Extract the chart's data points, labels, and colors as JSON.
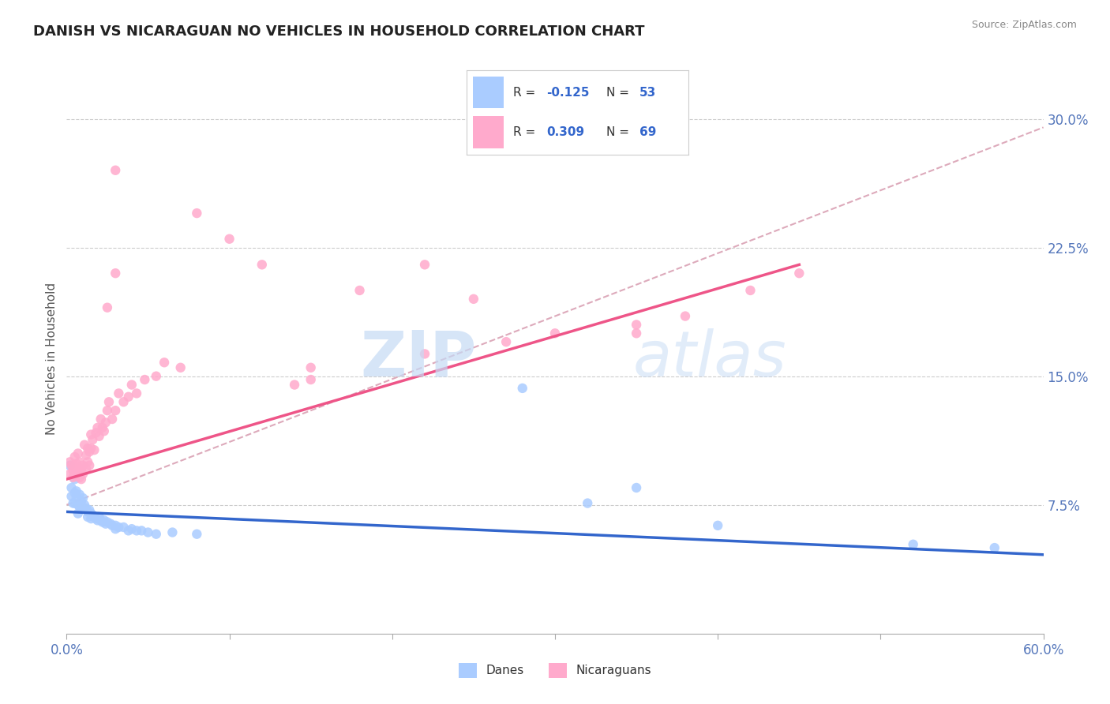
{
  "title": "DANISH VS NICARAGUAN NO VEHICLES IN HOUSEHOLD CORRELATION CHART",
  "source": "Source: ZipAtlas.com",
  "ylabel": "No Vehicles in Household",
  "ylabel_right_ticks": [
    "30.0%",
    "22.5%",
    "15.0%",
    "7.5%"
  ],
  "ylabel_right_values": [
    0.3,
    0.225,
    0.15,
    0.075
  ],
  "color_danes": "#aaccff",
  "color_nicar": "#ffaacc",
  "color_danes_line": "#3366cc",
  "color_nicar_line": "#ee5588",
  "color_trend_dashed": "#ddaabb",
  "watermark_zip": "ZIP",
  "watermark_atlas": "atlas",
  "xlim": [
    0.0,
    0.6
  ],
  "ylim": [
    0.0,
    0.32
  ],
  "danes_scatter": [
    [
      0.002,
      0.098
    ],
    [
      0.003,
      0.085
    ],
    [
      0.003,
      0.08
    ],
    [
      0.004,
      0.076
    ],
    [
      0.005,
      0.09
    ],
    [
      0.005,
      0.082
    ],
    [
      0.005,
      0.076
    ],
    [
      0.006,
      0.083
    ],
    [
      0.006,
      0.079
    ],
    [
      0.007,
      0.075
    ],
    [
      0.007,
      0.07
    ],
    [
      0.008,
      0.081
    ],
    [
      0.008,
      0.074
    ],
    [
      0.009,
      0.077
    ],
    [
      0.01,
      0.079
    ],
    [
      0.01,
      0.073
    ],
    [
      0.011,
      0.075
    ],
    [
      0.012,
      0.073
    ],
    [
      0.013,
      0.071
    ],
    [
      0.013,
      0.068
    ],
    [
      0.014,
      0.072
    ],
    [
      0.015,
      0.07
    ],
    [
      0.015,
      0.067
    ],
    [
      0.016,
      0.069
    ],
    [
      0.017,
      0.068
    ],
    [
      0.018,
      0.067
    ],
    [
      0.019,
      0.066
    ],
    [
      0.02,
      0.068
    ],
    [
      0.021,
      0.066
    ],
    [
      0.022,
      0.065
    ],
    [
      0.023,
      0.066
    ],
    [
      0.024,
      0.064
    ],
    [
      0.025,
      0.065
    ],
    [
      0.027,
      0.064
    ],
    [
      0.028,
      0.063
    ],
    [
      0.03,
      0.063
    ],
    [
      0.03,
      0.061
    ],
    [
      0.032,
      0.062
    ],
    [
      0.035,
      0.062
    ],
    [
      0.038,
      0.06
    ],
    [
      0.04,
      0.061
    ],
    [
      0.043,
      0.06
    ],
    [
      0.046,
      0.06
    ],
    [
      0.05,
      0.059
    ],
    [
      0.055,
      0.058
    ],
    [
      0.065,
      0.059
    ],
    [
      0.08,
      0.058
    ],
    [
      0.28,
      0.143
    ],
    [
      0.32,
      0.076
    ],
    [
      0.35,
      0.085
    ],
    [
      0.4,
      0.063
    ],
    [
      0.52,
      0.052
    ],
    [
      0.57,
      0.05
    ]
  ],
  "nicar_scatter": [
    [
      0.002,
      0.1
    ],
    [
      0.002,
      0.093
    ],
    [
      0.003,
      0.098
    ],
    [
      0.004,
      0.091
    ],
    [
      0.004,
      0.095
    ],
    [
      0.005,
      0.103
    ],
    [
      0.005,
      0.097
    ],
    [
      0.005,
      0.092
    ],
    [
      0.006,
      0.099
    ],
    [
      0.006,
      0.094
    ],
    [
      0.007,
      0.105
    ],
    [
      0.007,
      0.095
    ],
    [
      0.008,
      0.1
    ],
    [
      0.008,
      0.091
    ],
    [
      0.009,
      0.096
    ],
    [
      0.009,
      0.09
    ],
    [
      0.01,
      0.098
    ],
    [
      0.01,
      0.093
    ],
    [
      0.011,
      0.11
    ],
    [
      0.012,
      0.104
    ],
    [
      0.012,
      0.096
    ],
    [
      0.013,
      0.108
    ],
    [
      0.013,
      0.1
    ],
    [
      0.014,
      0.106
    ],
    [
      0.014,
      0.098
    ],
    [
      0.015,
      0.116
    ],
    [
      0.015,
      0.108
    ],
    [
      0.016,
      0.113
    ],
    [
      0.017,
      0.107
    ],
    [
      0.018,
      0.117
    ],
    [
      0.019,
      0.12
    ],
    [
      0.02,
      0.115
    ],
    [
      0.021,
      0.125
    ],
    [
      0.022,
      0.12
    ],
    [
      0.023,
      0.118
    ],
    [
      0.024,
      0.123
    ],
    [
      0.025,
      0.19
    ],
    [
      0.025,
      0.13
    ],
    [
      0.026,
      0.135
    ],
    [
      0.028,
      0.125
    ],
    [
      0.03,
      0.21
    ],
    [
      0.03,
      0.13
    ],
    [
      0.032,
      0.14
    ],
    [
      0.035,
      0.135
    ],
    [
      0.038,
      0.138
    ],
    [
      0.04,
      0.145
    ],
    [
      0.043,
      0.14
    ],
    [
      0.048,
      0.148
    ],
    [
      0.055,
      0.15
    ],
    [
      0.06,
      0.158
    ],
    [
      0.07,
      0.155
    ],
    [
      0.14,
      0.145
    ],
    [
      0.15,
      0.155
    ],
    [
      0.15,
      0.148
    ],
    [
      0.22,
      0.163
    ],
    [
      0.27,
      0.17
    ],
    [
      0.35,
      0.175
    ],
    [
      0.38,
      0.185
    ],
    [
      0.42,
      0.2
    ],
    [
      0.45,
      0.21
    ],
    [
      0.03,
      0.27
    ],
    [
      0.08,
      0.245
    ],
    [
      0.1,
      0.23
    ],
    [
      0.12,
      0.215
    ],
    [
      0.18,
      0.2
    ],
    [
      0.22,
      0.215
    ],
    [
      0.25,
      0.195
    ],
    [
      0.3,
      0.175
    ],
    [
      0.35,
      0.18
    ]
  ],
  "danes_line_x": [
    0.0,
    0.6
  ],
  "danes_line_y": [
    0.071,
    0.046
  ],
  "nicar_line_x": [
    0.0,
    0.45
  ],
  "nicar_line_y": [
    0.09,
    0.215
  ],
  "trend_line_x": [
    0.0,
    0.6
  ],
  "trend_line_y": [
    0.075,
    0.295
  ]
}
